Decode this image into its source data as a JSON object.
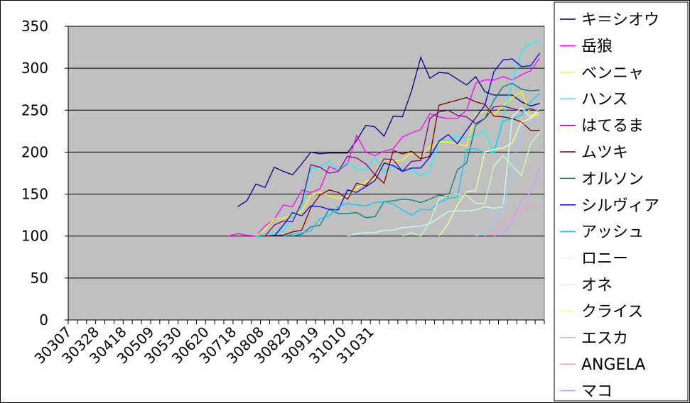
{
  "chart_data": {
    "type": "line",
    "title": "",
    "xlabel": "",
    "ylabel": "",
    "ylim": [
      0,
      350
    ],
    "yticks": [
      0,
      50,
      100,
      150,
      200,
      250,
      300,
      350
    ],
    "grid": true,
    "legend_position": "right",
    "plot_background": "#c0c0c0",
    "x_tick_labels": [
      "30307",
      "30328",
      "30418",
      "30509",
      "30530",
      "30620",
      "30718",
      "30808",
      "30829",
      "30919",
      "31010",
      "31031"
    ],
    "x_count": 52,
    "series": [
      {
        "name": "キ＝シオウ",
        "color": "#000080",
        "values": [
          135,
          142,
          162,
          158,
          182,
          177,
          173,
          186,
          200,
          198,
          199,
          199,
          199,
          214,
          232,
          230,
          219,
          243,
          242,
          273,
          313,
          288,
          295,
          294,
          287,
          280,
          290,
          272,
          268,
          268,
          268,
          260,
          255,
          258
        ]
      },
      {
        "name": "岳狼",
        "color": "#ff00ff",
        "values": [
          100,
          103,
          101,
          100,
          112,
          120,
          137,
          135,
          155,
          152,
          156,
          183,
          178,
          186,
          220,
          200,
          196,
          201,
          204,
          218,
          223,
          227,
          246,
          242,
          240,
          240,
          250,
          282,
          286,
          286,
          290,
          286,
          292,
          297,
          312
        ]
      },
      {
        "name": "ベンニャ",
        "color": "#ffff00",
        "values": [
          100,
          108,
          121,
          121,
          126,
          129,
          149,
          152,
          148,
          145,
          147,
          157,
          165,
          168,
          191,
          189,
          191,
          199,
          195,
          207,
          212,
          212,
          210,
          207,
          245,
          249,
          245,
          255,
          265,
          272,
          244,
          244
        ]
      },
      {
        "name": "ハンス",
        "color": "#00ffff",
        "values": [
          100,
          102,
          104,
          106,
          123,
          135,
          181,
          182,
          189,
          178,
          188,
          180,
          179,
          194,
          176,
          184,
          181,
          179,
          172,
          178,
          215,
          214,
          219,
          217,
          220,
          226,
          198,
          240,
          284,
          320,
          330,
          332
        ]
      },
      {
        "name": "はてるま",
        "color": "#800080",
        "values": [
          100,
          113,
          118,
          117,
          140,
          185,
          182,
          175,
          177,
          195,
          193,
          186,
          173,
          192,
          191,
          177,
          189,
          190,
          240,
          248,
          250,
          244,
          242,
          234,
          240,
          254,
          255,
          252,
          249,
          252,
          248
        ]
      },
      {
        "name": "ムツキ",
        "color": "#800000",
        "values": [
          100,
          101,
          101,
          105,
          107,
          134,
          149,
          155,
          152,
          144,
          163,
          160,
          173,
          163,
          202,
          198,
          201,
          192,
          195,
          256,
          259,
          262,
          265,
          260,
          257,
          243,
          242,
          240,
          236,
          226,
          226
        ]
      },
      {
        "name": "オルソン",
        "color": "#008080",
        "values": [
          100,
          102,
          111,
          113,
          132,
          127,
          127,
          128,
          122,
          123,
          141,
          142,
          144,
          143,
          140,
          144,
          149,
          147,
          179,
          187,
          232,
          240,
          262,
          278,
          282,
          275,
          273,
          274
        ]
      },
      {
        "name": "シルヴィア",
        "color": "#0000ff",
        "values": [
          100,
          113,
          128,
          124,
          136,
          135,
          132,
          131,
          155,
          152,
          159,
          166,
          187,
          184,
          177,
          181,
          181,
          194,
          213,
          221,
          210,
          226,
          241,
          256,
          296,
          310,
          311,
          302,
          303,
          318
        ]
      },
      {
        "name": "アッシュ",
        "color": "#00ccff",
        "values": [
          100,
          102,
          104,
          106,
          121,
          124,
          135,
          139,
          137,
          136,
          140,
          141,
          138,
          131,
          125,
          132,
          131,
          140,
          145,
          146,
          203,
          204,
          199,
          200,
          237,
          240,
          244,
          260,
          270
        ]
      },
      {
        "name": "ロニー",
        "color": "#ccffff",
        "values": [
          100,
          103,
          104,
          104,
          107,
          107,
          110,
          111,
          112,
          115,
          122,
          129,
          130,
          130,
          131,
          135,
          133,
          135,
          242,
          253,
          241,
          253
        ]
      },
      {
        "name": "オネ",
        "color": "#ccffcc",
        "values": [
          100,
          104,
          100,
          117,
          144,
          149,
          150,
          149,
          139,
          139,
          184,
          196,
          184,
          172,
          210,
          224
        ]
      },
      {
        "name": "クライス",
        "color": "#ffff99",
        "values": [
          100,
          115,
          137,
          153,
          154,
          200,
          203,
          205,
          211,
          236,
          240,
          249
        ]
      },
      {
        "name": "エスカ",
        "color": "#99ccff",
        "values": [
          100,
          103,
          117,
          135,
          172,
          232,
          237,
          240
        ]
      },
      {
        "name": "ANGELA",
        "color": "#ff99cc",
        "values": [
          100,
          104,
          117,
          125,
          130,
          136,
          136
        ]
      },
      {
        "name": "マコ",
        "color": "#cc99ff",
        "values": [
          100,
          105,
          117,
          143,
          152,
          182
        ]
      }
    ]
  }
}
